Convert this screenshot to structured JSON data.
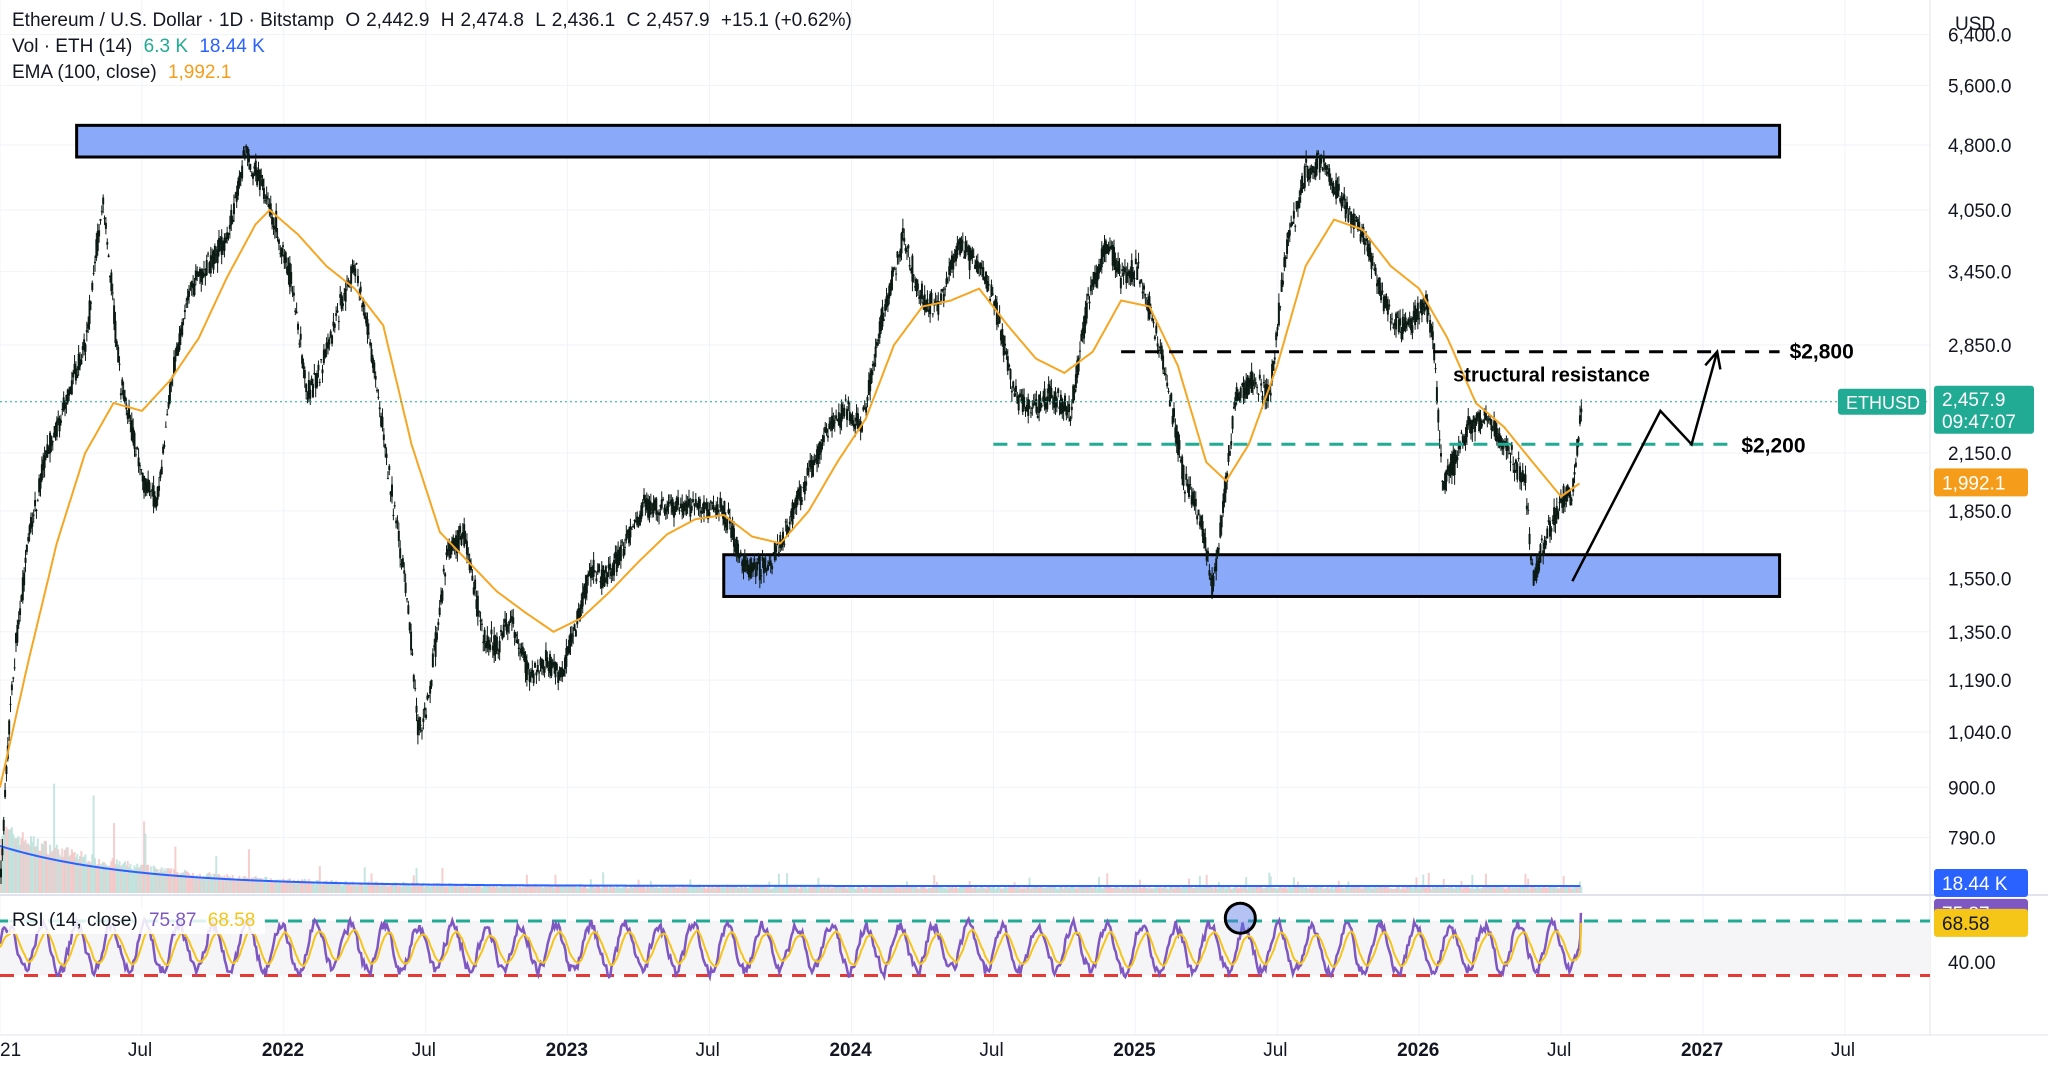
{
  "header": {
    "symbol_title": "Ethereum / U.S. Dollar · 1D · Bitstamp",
    "ohlc": {
      "open_label": "O",
      "open": "2,442.9",
      "high_label": "H",
      "high": "2,474.8",
      "low_label": "L",
      "low": "2,436.1",
      "close_label": "C",
      "close": "2,457.9",
      "change": "+15.1 (+0.62%)"
    },
    "volume_label": "Vol · ETH (14)",
    "volume_value": "6.3 K",
    "volume_ma_value": "18.44 K",
    "ema_label": "EMA (100, close)",
    "ema_value": "1,992.1"
  },
  "price_axis": {
    "currency": "USD",
    "ticks": [
      "6,400.0",
      "5,600.0",
      "4,800.0",
      "4,050.0",
      "3,450.0",
      "2,850.0",
      "2,150.0",
      "1,850.0",
      "1,550.0",
      "1,350.0",
      "1,190.0",
      "1,040.0",
      "900.0",
      "790.0"
    ],
    "tick_values": [
      6400,
      5600,
      4800,
      4050,
      3450,
      2850,
      2150,
      1850,
      1550,
      1350,
      1190,
      1040,
      900,
      790
    ],
    "last_price_tag": {
      "symbol": "ETHUSD",
      "price": "2,457.9",
      "countdown": "09:47:07"
    },
    "ema_tag": "1,992.1",
    "volume_tag": "18.44 K"
  },
  "time_axis": {
    "labels": [
      "21",
      "Jul",
      "2022",
      "Jul",
      "2023",
      "Jul",
      "2024",
      "Jul",
      "2025",
      "Jul",
      "2026",
      "Jul",
      "2027",
      "Jul"
    ],
    "label_dates": [
      2021.0,
      2021.5,
      2022.0,
      2022.5,
      2023.0,
      2023.5,
      2024.0,
      2024.5,
      2025.0,
      2025.5,
      2026.0,
      2026.5,
      2027.0,
      2027.5
    ],
    "bold_labels": [
      "2022",
      "2023",
      "2024",
      "2025",
      "2026",
      "2027"
    ]
  },
  "rsi": {
    "label": "RSI (14, close)",
    "rsi_value": "75.87",
    "ma_value": "68.58",
    "axis_tick": "40.00",
    "upper_band": 70,
    "lower_band": 30
  },
  "annotations": {
    "resistance_zone": {
      "from": 4650,
      "to": 5050,
      "start": 2021.27,
      "end": 2027.27
    },
    "support_zone": {
      "from": 1480,
      "to": 1650,
      "start": 2023.55,
      "end": 2027.27
    },
    "level_2800": {
      "label": "$2,800",
      "value": 2800,
      "start": 2024.95,
      "end": 2027.27
    },
    "level_2200": {
      "label": "$2,200",
      "value": 2200,
      "start": 2024.5,
      "end": 2027.1
    },
    "resistance_text": "structural resistance",
    "forecast_path": [
      [
        2026.54,
        1540
      ],
      [
        2026.85,
        2400
      ],
      [
        2026.96,
        2200
      ],
      [
        2027.05,
        2800
      ]
    ]
  },
  "colors": {
    "candle": "#0c1a14",
    "ema": "#f5a623",
    "zone_fill": "#8aa9f8",
    "zone_stroke": "#000000",
    "dash_black": "#000000",
    "dash_green": "#22ab94",
    "dash_red": "#e53935",
    "rsi_line": "#7e57c2",
    "rsi_ma": "#f5c518",
    "volume_ma": "#2962ff",
    "tag_green": "#22ab94",
    "tag_orange": "#f59d1b",
    "tag_blue": "#2962ff",
    "tag_purple": "#7e57c2",
    "tag_yellow": "#f5c518"
  },
  "chart_data": {
    "type": "candlestick",
    "symbol": "ETHUSD",
    "scale": "log",
    "ylim": [
      680,
      7000
    ],
    "xlim": [
      2021.0,
      2027.8
    ],
    "grid": true,
    "price_path": [
      [
        2021.0,
        730
      ],
      [
        2021.04,
        1200
      ],
      [
        2021.1,
        1750
      ],
      [
        2021.17,
        2200
      ],
      [
        2021.24,
        2500
      ],
      [
        2021.3,
        2900
      ],
      [
        2021.36,
        4200
      ],
      [
        2021.42,
        2600
      ],
      [
        2021.5,
        2000
      ],
      [
        2021.55,
        1900
      ],
      [
        2021.6,
        2600
      ],
      [
        2021.67,
        3300
      ],
      [
        2021.73,
        3500
      ],
      [
        2021.8,
        3800
      ],
      [
        2021.86,
        4700
      ],
      [
        2021.92,
        4300
      ],
      [
        2021.97,
        3900
      ],
      [
        2022.03,
        3300
      ],
      [
        2022.08,
        2500
      ],
      [
        2022.13,
        2700
      ],
      [
        2022.2,
        3200
      ],
      [
        2022.25,
        3500
      ],
      [
        2022.3,
        2900
      ],
      [
        2022.37,
        2000
      ],
      [
        2022.43,
        1500
      ],
      [
        2022.47,
        1050
      ],
      [
        2022.5,
        1100
      ],
      [
        2022.53,
        1300
      ],
      [
        2022.57,
        1650
      ],
      [
        2022.63,
        1750
      ],
      [
        2022.7,
        1330
      ],
      [
        2022.75,
        1300
      ],
      [
        2022.8,
        1400
      ],
      [
        2022.86,
        1200
      ],
      [
        2022.92,
        1250
      ],
      [
        2022.97,
        1200
      ],
      [
        2023.02,
        1350
      ],
      [
        2023.08,
        1600
      ],
      [
        2023.13,
        1550
      ],
      [
        2023.2,
        1700
      ],
      [
        2023.27,
        1880
      ],
      [
        2023.35,
        1850
      ],
      [
        2023.45,
        1880
      ],
      [
        2023.55,
        1850
      ],
      [
        2023.62,
        1600
      ],
      [
        2023.7,
        1600
      ],
      [
        2023.78,
        1800
      ],
      [
        2023.85,
        2050
      ],
      [
        2023.92,
        2300
      ],
      [
        2023.98,
        2400
      ],
      [
        2024.03,
        2300
      ],
      [
        2024.1,
        3000
      ],
      [
        2024.18,
        3800
      ],
      [
        2024.23,
        3300
      ],
      [
        2024.3,
        3100
      ],
      [
        2024.37,
        3700
      ],
      [
        2024.45,
        3500
      ],
      [
        2024.5,
        3200
      ],
      [
        2024.57,
        2500
      ],
      [
        2024.62,
        2400
      ],
      [
        2024.7,
        2500
      ],
      [
        2024.77,
        2400
      ],
      [
        2024.83,
        3200
      ],
      [
        2024.9,
        3700
      ],
      [
        2024.95,
        3400
      ],
      [
        2025.0,
        3500
      ],
      [
        2025.05,
        3100
      ],
      [
        2025.1,
        2700
      ],
      [
        2025.17,
        2000
      ],
      [
        2025.23,
        1800
      ],
      [
        2025.27,
        1500
      ],
      [
        2025.3,
        1800
      ],
      [
        2025.35,
        2500
      ],
      [
        2025.42,
        2600
      ],
      [
        2025.47,
        2500
      ],
      [
        2025.53,
        3700
      ],
      [
        2025.6,
        4500
      ],
      [
        2025.65,
        4600
      ],
      [
        2025.7,
        4300
      ],
      [
        2025.75,
        4000
      ],
      [
        2025.8,
        3800
      ],
      [
        2025.87,
        3200
      ],
      [
        2025.92,
        3000
      ],
      [
        2025.97,
        3000
      ],
      [
        2026.02,
        3200
      ],
      [
        2026.05,
        2800
      ],
      [
        2026.08,
        2000
      ],
      [
        2026.12,
        2100
      ],
      [
        2026.17,
        2300
      ],
      [
        2026.23,
        2350
      ],
      [
        2026.3,
        2200
      ],
      [
        2026.37,
        2000
      ],
      [
        2026.4,
        1550
      ],
      [
        2026.45,
        1750
      ],
      [
        2026.5,
        1900
      ],
      [
        2026.54,
        1950
      ],
      [
        2026.57,
        2460
      ]
    ],
    "ema_path": [
      [
        2021.0,
        900
      ],
      [
        2021.1,
        1250
      ],
      [
        2021.2,
        1700
      ],
      [
        2021.3,
        2150
      ],
      [
        2021.4,
        2450
      ],
      [
        2021.5,
        2400
      ],
      [
        2021.6,
        2600
      ],
      [
        2021.7,
        2900
      ],
      [
        2021.8,
        3400
      ],
      [
        2021.9,
        3900
      ],
      [
        2021.95,
        4050
      ],
      [
        2022.05,
        3800
      ],
      [
        2022.15,
        3500
      ],
      [
        2022.25,
        3300
      ],
      [
        2022.35,
        3000
      ],
      [
        2022.45,
        2200
      ],
      [
        2022.55,
        1750
      ],
      [
        2022.65,
        1620
      ],
      [
        2022.75,
        1500
      ],
      [
        2022.85,
        1420
      ],
      [
        2022.95,
        1350
      ],
      [
        2023.05,
        1400
      ],
      [
        2023.15,
        1500
      ],
      [
        2023.25,
        1620
      ],
      [
        2023.35,
        1740
      ],
      [
        2023.45,
        1810
      ],
      [
        2023.55,
        1830
      ],
      [
        2023.65,
        1730
      ],
      [
        2023.75,
        1700
      ],
      [
        2023.85,
        1850
      ],
      [
        2023.95,
        2100
      ],
      [
        2024.05,
        2350
      ],
      [
        2024.15,
        2850
      ],
      [
        2024.25,
        3150
      ],
      [
        2024.35,
        3200
      ],
      [
        2024.45,
        3300
      ],
      [
        2024.55,
        3000
      ],
      [
        2024.65,
        2750
      ],
      [
        2024.75,
        2650
      ],
      [
        2024.85,
        2800
      ],
      [
        2024.95,
        3200
      ],
      [
        2025.05,
        3150
      ],
      [
        2025.15,
        2700
      ],
      [
        2025.25,
        2100
      ],
      [
        2025.32,
        2000
      ],
      [
        2025.4,
        2200
      ],
      [
        2025.5,
        2700
      ],
      [
        2025.6,
        3500
      ],
      [
        2025.7,
        3950
      ],
      [
        2025.8,
        3850
      ],
      [
        2025.9,
        3500
      ],
      [
        2026.0,
        3300
      ],
      [
        2026.1,
        2900
      ],
      [
        2026.2,
        2450
      ],
      [
        2026.3,
        2300
      ],
      [
        2026.4,
        2100
      ],
      [
        2026.5,
        1920
      ],
      [
        2026.57,
        1992
      ]
    ],
    "series": [
      {
        "name": "EMA (100, close)",
        "last_value": 1992.1
      },
      {
        "name": "RSI (14, close)",
        "last_value": 75.87
      },
      {
        "name": "RSI MA",
        "last_value": 68.58
      },
      {
        "name": "Vol · ETH (14)",
        "last_value": 6300,
        "ma_value": 18440
      }
    ]
  }
}
